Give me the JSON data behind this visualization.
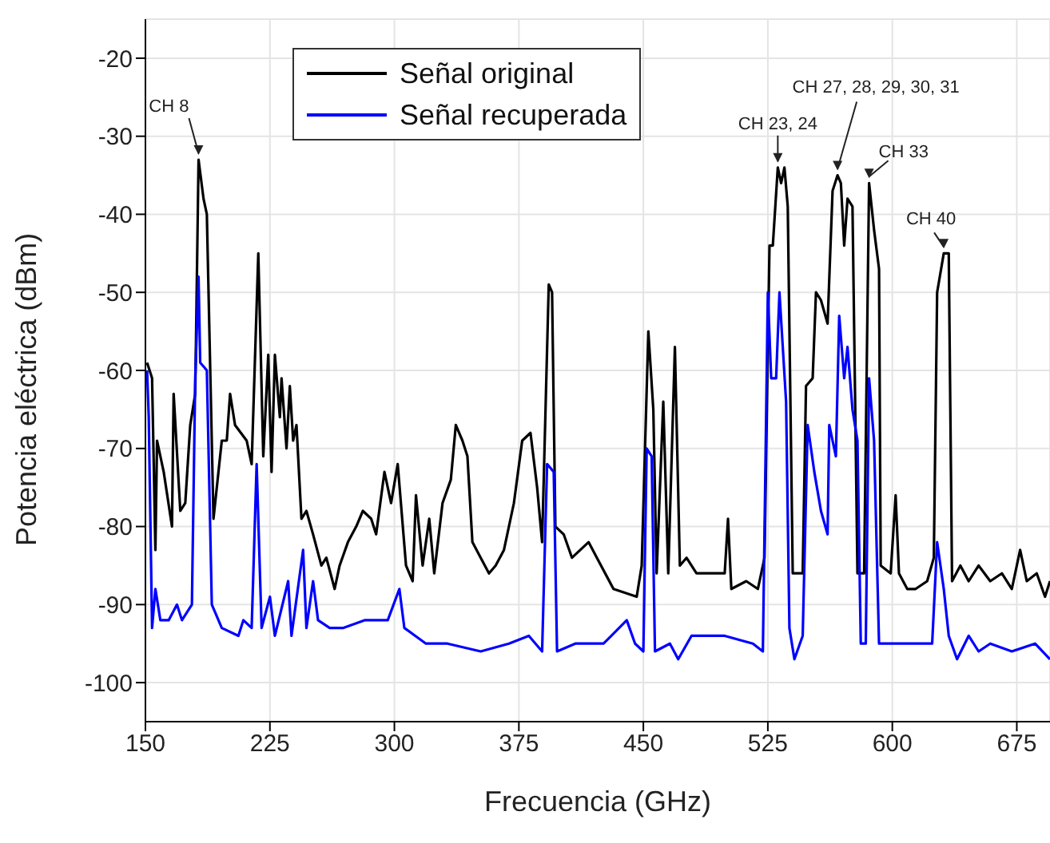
{
  "chart_data": {
    "type": "line",
    "xlabel": "Frecuencia (GHz)",
    "ylabel": "Potencia eléctrica (dBm)",
    "xlim": [
      150,
      695
    ],
    "xticks": [
      150,
      225,
      300,
      375,
      450,
      525,
      600,
      675
    ],
    "ylim": [
      -105,
      -15
    ],
    "yticks": [
      -100,
      -90,
      -80,
      -70,
      -60,
      -50,
      -40,
      -30,
      -20
    ],
    "grid": true,
    "legend": "top left",
    "marker": "none",
    "line_style": "solid",
    "annotations": [
      {
        "text": "CH 8",
        "x": 182,
        "y": -33
      },
      {
        "text": "CH 23, 24",
        "x": 531,
        "y": -34
      },
      {
        "text": "CH 27, 28, 29, 30, 31",
        "x": 567,
        "y": -35
      },
      {
        "text": "CH 33",
        "x": 586,
        "y": -36
      },
      {
        "text": "CH 40",
        "x": 631,
        "y": -45
      }
    ],
    "series": [
      {
        "name": "Señal original",
        "color": "#000000",
        "x": [
          151,
          154,
          156,
          157,
          161,
          166,
          167,
          171,
          174,
          177,
          180,
          182,
          185,
          187,
          191,
          196,
          199,
          201,
          204,
          211,
          214,
          218,
          221,
          224,
          226,
          228,
          231,
          232,
          235,
          237,
          239,
          241,
          244,
          247,
          251,
          256,
          259,
          264,
          267,
          272,
          277,
          281,
          286,
          289,
          294,
          298,
          302,
          307,
          311,
          313,
          317,
          321,
          324,
          329,
          334,
          337,
          341,
          344,
          347,
          352,
          357,
          361,
          366,
          372,
          377,
          382,
          386,
          389,
          393,
          395,
          397,
          402,
          407,
          417,
          422,
          432,
          446,
          449,
          453,
          456,
          458,
          462,
          465,
          469,
          472,
          476,
          482,
          492,
          499,
          501,
          503,
          512,
          519,
          523,
          526,
          528,
          531,
          533,
          535,
          537,
          540,
          546,
          548,
          552,
          554,
          557,
          561,
          564,
          567,
          569,
          571,
          573,
          576,
          579,
          583,
          586,
          589,
          592,
          593,
          599,
          602,
          604,
          609,
          614,
          621,
          625,
          627,
          631,
          634,
          636,
          641,
          646,
          652,
          659,
          666,
          672,
          677,
          681,
          687,
          692,
          695
        ],
        "values": [
          -59,
          -61,
          -83,
          -69,
          -73,
          -80,
          -63,
          -78,
          -77,
          -67,
          -63,
          -33,
          -38,
          -40,
          -79,
          -69,
          -69,
          -63,
          -67,
          -69,
          -72,
          -45,
          -71,
          -58,
          -73,
          -58,
          -66,
          -61,
          -70,
          -62,
          -69,
          -67,
          -79,
          -78,
          -81,
          -85,
          -84,
          -88,
          -85,
          -82,
          -80,
          -78,
          -79,
          -81,
          -73,
          -77,
          -72,
          -85,
          -87,
          -76,
          -85,
          -79,
          -86,
          -77,
          -74,
          -67,
          -69,
          -71,
          -82,
          -84,
          -86,
          -85,
          -83,
          -77,
          -69,
          -68,
          -75,
          -82,
          -49,
          -50,
          -80,
          -81,
          -84,
          -82,
          -84,
          -88,
          -89,
          -85,
          -55,
          -65,
          -86,
          -64,
          -86,
          -57,
          -85,
          -84,
          -86,
          -86,
          -86,
          -79,
          -88,
          -87,
          -88,
          -84,
          -44,
          -44,
          -34,
          -36,
          -34,
          -39,
          -86,
          -86,
          -62,
          -61,
          -50,
          -51,
          -54,
          -37,
          -35,
          -36,
          -44,
          -38,
          -39,
          -86,
          -86,
          -36,
          -42,
          -47,
          -85,
          -86,
          -76,
          -86,
          -88,
          -88,
          -87,
          -84,
          -50,
          -45,
          -45,
          -87,
          -85,
          -87,
          -85,
          -87,
          -86,
          -88,
          -83,
          -87,
          -86,
          -89,
          -87
        ]
      },
      {
        "name": "Señal recuperada",
        "color": "#0000ff",
        "x": [
          151,
          152,
          154,
          156,
          159,
          164,
          169,
          172,
          178,
          180,
          182,
          183,
          187,
          190,
          196,
          206,
          209,
          214,
          217,
          220,
          225,
          228,
          236,
          238,
          245,
          247,
          251,
          254,
          261,
          269,
          282,
          296,
          303,
          306,
          319,
          332,
          352,
          369,
          381,
          389,
          392,
          396,
          398,
          409,
          426,
          440,
          445,
          450,
          452,
          455,
          457,
          466,
          471,
          479,
          499,
          516,
          522,
          525,
          527,
          530,
          532,
          536,
          538,
          541,
          546,
          549,
          553,
          557,
          561,
          562,
          566,
          568,
          571,
          573,
          576,
          579,
          581,
          584,
          586,
          589,
          592,
          602,
          612,
          624,
          627,
          631,
          634,
          639,
          646,
          652,
          659,
          672,
          686,
          695
        ],
        "values": [
          -60,
          -66,
          -93,
          -88,
          -92,
          -92,
          -90,
          -92,
          -90,
          -61,
          -48,
          -59,
          -60,
          -90,
          -93,
          -94,
          -92,
          -93,
          -72,
          -93,
          -89,
          -94,
          -87,
          -94,
          -83,
          -93,
          -87,
          -92,
          -93,
          -93,
          -92,
          -92,
          -88,
          -93,
          -95,
          -95,
          -96,
          -95,
          -94,
          -96,
          -72,
          -73,
          -96,
          -95,
          -95,
          -92,
          -95,
          -96,
          -70,
          -71,
          -96,
          -95,
          -97,
          -94,
          -94,
          -95,
          -96,
          -50,
          -61,
          -61,
          -50,
          -64,
          -93,
          -97,
          -94,
          -67,
          -73,
          -78,
          -81,
          -67,
          -71,
          -53,
          -61,
          -57,
          -65,
          -69,
          -95,
          -95,
          -61,
          -69,
          -95,
          -95,
          -95,
          -95,
          -82,
          -88,
          -94,
          -97,
          -94,
          -96,
          -95,
          -96,
          -95,
          -97
        ]
      }
    ]
  }
}
